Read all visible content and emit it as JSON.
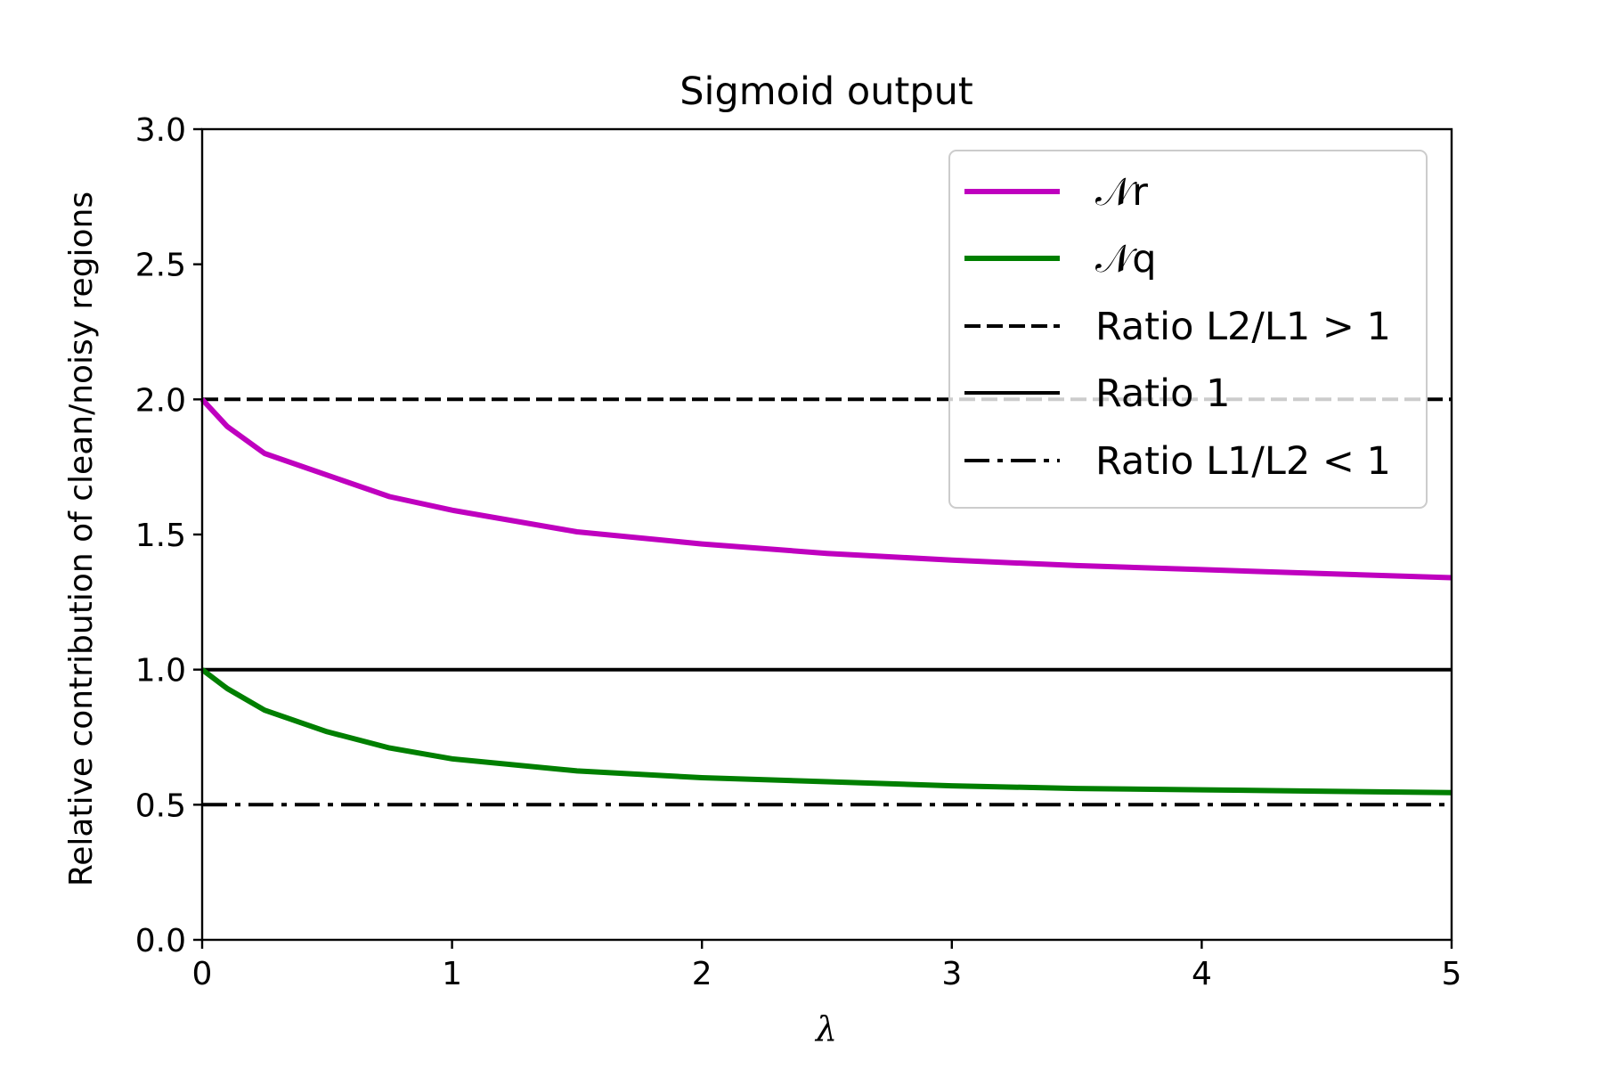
{
  "chart_data": {
    "type": "line",
    "title": "Sigmoid output",
    "xlabel": "λ",
    "ylabel": "Relative contribution of clean/noisy regions",
    "xlim": [
      0,
      5
    ],
    "ylim": [
      0,
      3.0
    ],
    "x_ticks": [
      "0",
      "1",
      "2",
      "3",
      "4",
      "5"
    ],
    "y_ticks": [
      "0.0",
      "0.5",
      "1.0",
      "1.5",
      "2.0",
      "2.5",
      "3.0"
    ],
    "grid": false,
    "legend_position": "top-right",
    "series": [
      {
        "name": "𝒩r",
        "color": "#bf00bf",
        "style": "solid",
        "x": [
          0,
          0.1,
          0.25,
          0.5,
          0.75,
          1,
          1.5,
          2,
          2.5,
          3,
          3.5,
          4,
          4.5,
          5
        ],
        "y": [
          2.0,
          1.9,
          1.8,
          1.72,
          1.64,
          1.59,
          1.51,
          1.465,
          1.43,
          1.405,
          1.385,
          1.37,
          1.355,
          1.34
        ]
      },
      {
        "name": "𝒩q",
        "color": "#007f00",
        "style": "solid",
        "x": [
          0,
          0.1,
          0.25,
          0.5,
          0.75,
          1,
          1.5,
          2,
          2.5,
          3,
          3.5,
          4,
          4.5,
          5
        ],
        "y": [
          1.0,
          0.93,
          0.85,
          0.77,
          0.71,
          0.67,
          0.625,
          0.6,
          0.585,
          0.57,
          0.56,
          0.555,
          0.55,
          0.545
        ]
      },
      {
        "name": "Ratio L2/L1 > 1",
        "color": "#000000",
        "style": "dashed",
        "x": [
          0,
          5
        ],
        "y": [
          2.0,
          2.0
        ]
      },
      {
        "name": "Ratio 1",
        "color": "#000000",
        "style": "solid",
        "x": [
          0,
          5
        ],
        "y": [
          1.0,
          1.0
        ]
      },
      {
        "name": "Ratio L1/L2 < 1",
        "color": "#000000",
        "style": "dashdot",
        "x": [
          0,
          5
        ],
        "y": [
          0.5,
          0.5
        ]
      }
    ]
  }
}
